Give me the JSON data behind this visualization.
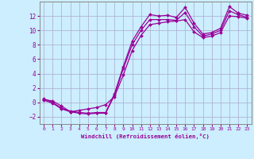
{
  "xlabel": "Windchill (Refroidissement éolien,°C)",
  "background_color": "#cceeff",
  "grid_color": "#aaaacc",
  "line_color": "#990099",
  "x_min": -0.5,
  "x_max": 23.5,
  "y_min": -3.0,
  "y_max": 14.0,
  "yticks": [
    -2,
    0,
    2,
    4,
    6,
    8,
    10,
    12
  ],
  "xticks": [
    0,
    1,
    2,
    3,
    4,
    5,
    6,
    7,
    8,
    9,
    10,
    11,
    12,
    13,
    14,
    15,
    16,
    17,
    18,
    19,
    20,
    21,
    22,
    23
  ],
  "line1_x": [
    0,
    1,
    2,
    3,
    4,
    5,
    6,
    7,
    8,
    9,
    10,
    11,
    12,
    13,
    14,
    15,
    16,
    17,
    18,
    19,
    20,
    21,
    22,
    23
  ],
  "line1_y": [
    0.5,
    0.0,
    -0.8,
    -1.2,
    -1.4,
    -1.5,
    -1.4,
    -1.4,
    1.2,
    5.0,
    8.5,
    10.5,
    12.2,
    12.0,
    12.1,
    11.8,
    13.2,
    11.0,
    9.5,
    9.7,
    10.3,
    13.3,
    12.4,
    12.1
  ],
  "line2_x": [
    0,
    1,
    2,
    3,
    4,
    5,
    6,
    7,
    8,
    9,
    10,
    11,
    12,
    13,
    14,
    15,
    16,
    17,
    18,
    19,
    20,
    21,
    22,
    23
  ],
  "line2_y": [
    0.3,
    -0.1,
    -0.9,
    -1.3,
    -1.5,
    -1.6,
    -1.5,
    -1.5,
    1.0,
    4.7,
    8.0,
    10.0,
    11.5,
    11.5,
    11.5,
    11.4,
    12.5,
    10.5,
    9.2,
    9.5,
    10.0,
    12.7,
    12.2,
    11.8
  ],
  "line3_x": [
    0,
    1,
    2,
    3,
    4,
    5,
    6,
    7,
    8,
    9,
    10,
    11,
    12,
    13,
    14,
    15,
    16,
    17,
    18,
    19,
    20,
    21,
    22,
    23
  ],
  "line3_y": [
    0.4,
    0.2,
    -0.5,
    -1.3,
    -1.1,
    -0.9,
    -0.7,
    -0.3,
    0.8,
    3.8,
    7.2,
    9.3,
    10.8,
    11.0,
    11.2,
    11.3,
    11.5,
    9.8,
    9.0,
    9.2,
    9.7,
    12.0,
    11.9,
    11.7
  ]
}
